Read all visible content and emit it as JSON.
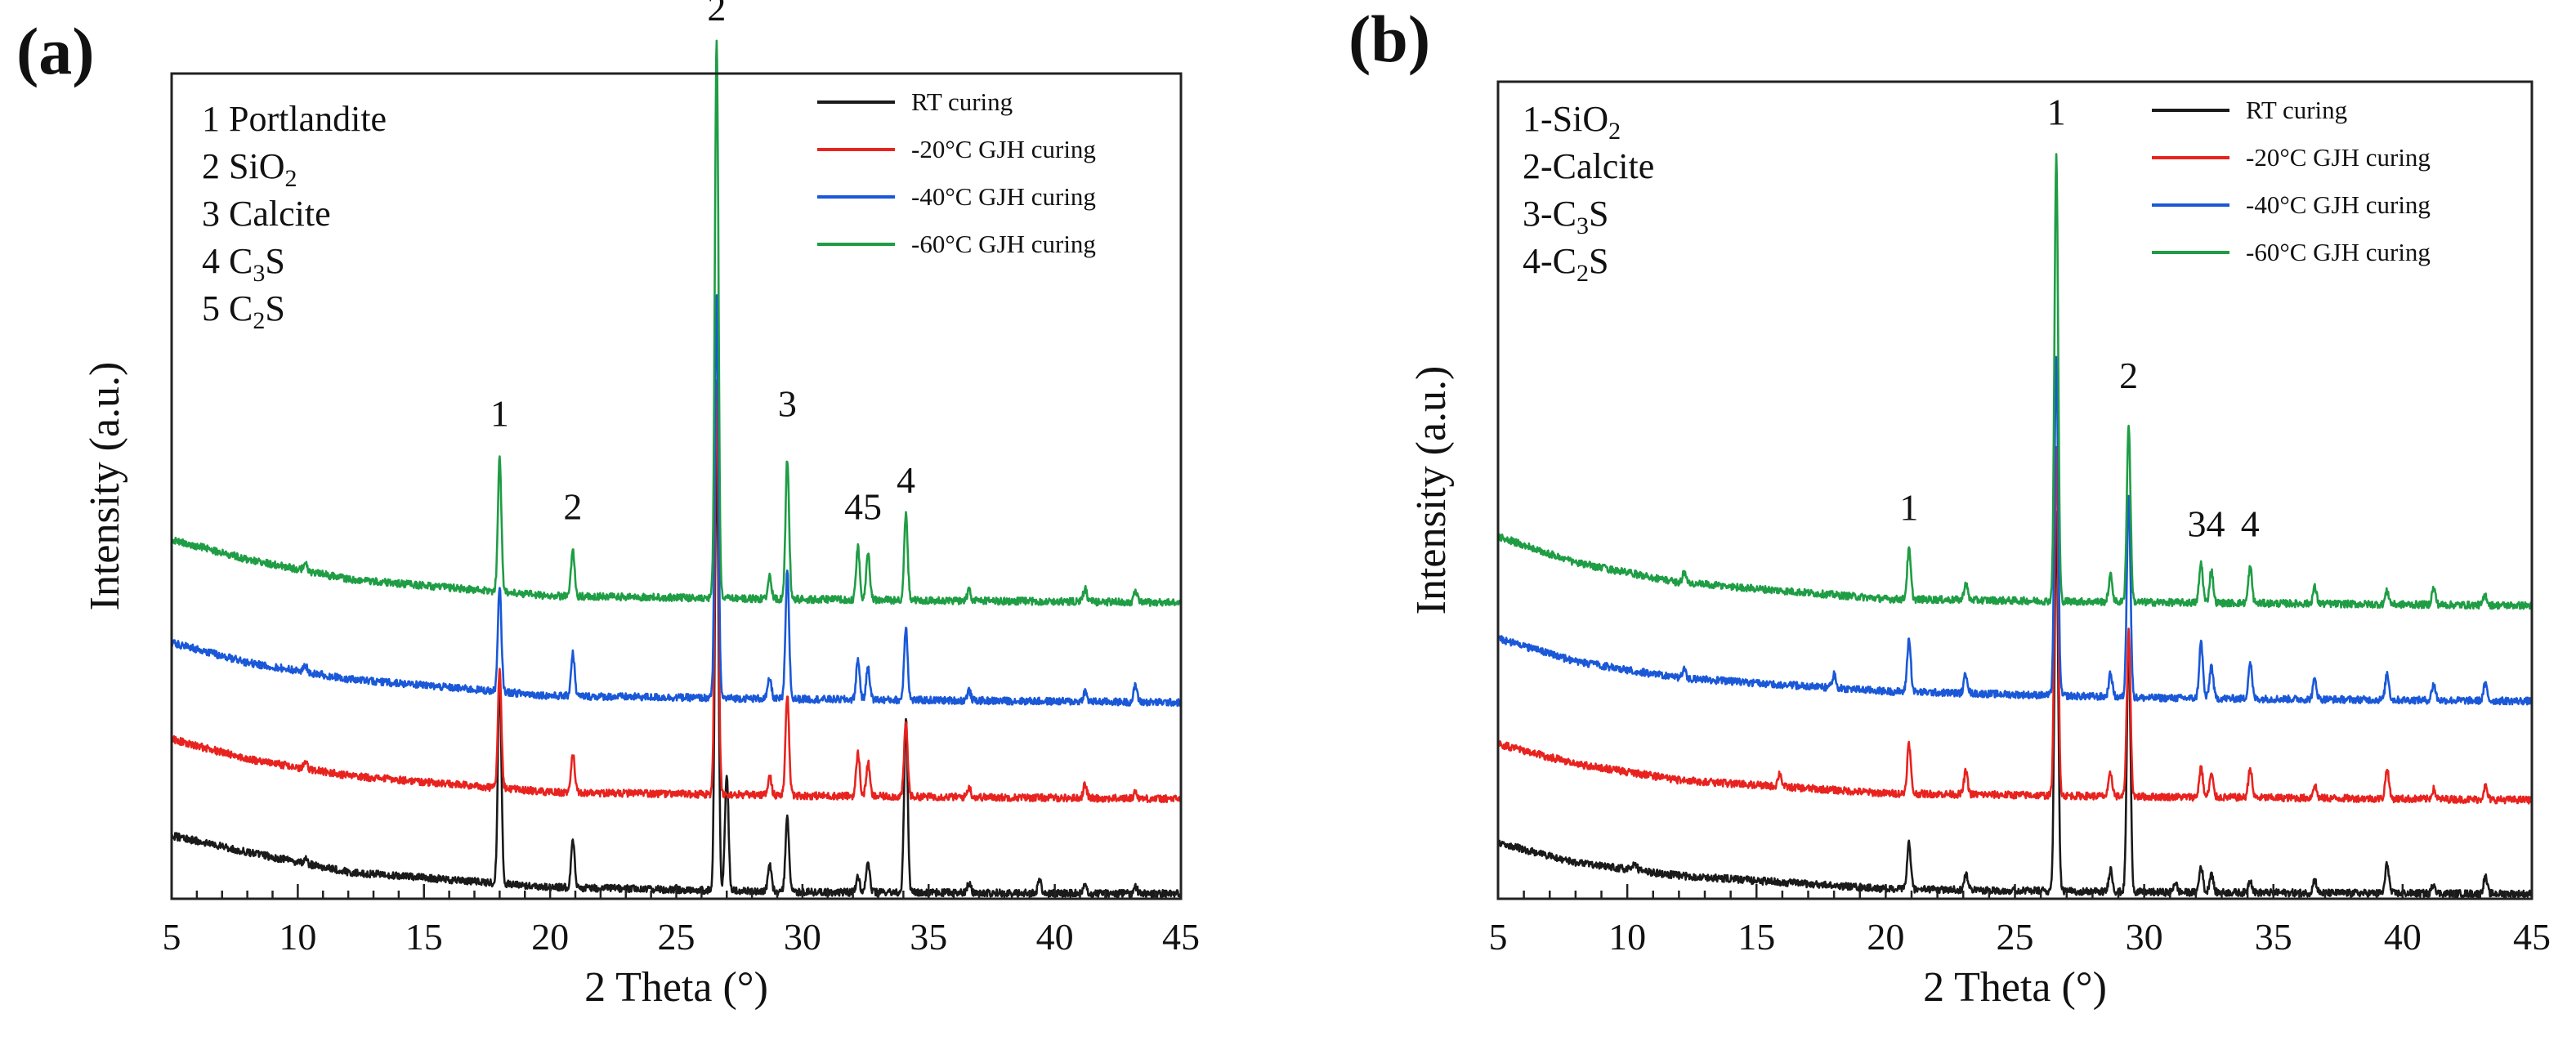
{
  "chart_data": [
    {
      "panel_label": "(a)",
      "type": "line",
      "xlabel": "2 Theta (°)",
      "ylabel": "Intensity (a.u.)",
      "xlim": [
        5,
        45
      ],
      "x_ticks": [
        5,
        10,
        15,
        20,
        25,
        30,
        35,
        40,
        45
      ],
      "y_ticks_labeled": false,
      "legend_position": "top-right",
      "phase_key": [
        {
          "num": "1",
          "name": "Portlandite"
        },
        {
          "num": "2",
          "name": "SiO",
          "sub": "2"
        },
        {
          "num": "3",
          "name": "Calcite"
        },
        {
          "num": "4",
          "name": "C",
          "sub": "3",
          "tail": "S"
        },
        {
          "num": "5",
          "name": "C",
          "sub": "2",
          "tail": "S"
        }
      ],
      "series": [
        {
          "name": "RT curing",
          "color": "#1a1a1a",
          "baseline": [
            [
              5,
              0.19
            ],
            [
              8,
              0.14
            ],
            [
              12,
              0.08
            ],
            [
              20,
              0.035
            ],
            [
              30,
              0.02
            ],
            [
              45,
              0.015
            ]
          ],
          "peaks": [
            [
              10.3,
              0.015
            ],
            [
              18.0,
              0.62
            ],
            [
              20.9,
              0.14
            ],
            [
              26.6,
              1.35
            ],
            [
              27.0,
              0.35
            ],
            [
              28.7,
              0.08
            ],
            [
              29.4,
              0.22
            ],
            [
              32.2,
              0.05
            ],
            [
              32.6,
              0.09
            ],
            [
              34.1,
              0.53
            ],
            [
              36.6,
              0.03
            ],
            [
              39.4,
              0.04
            ],
            [
              41.2,
              0.02
            ],
            [
              43.2,
              0.02
            ]
          ]
        },
        {
          "name": "-20°C GJH curing",
          "color": "#e8231f",
          "baseline": [
            [
              5,
              0.2
            ],
            [
              8,
              0.14
            ],
            [
              12,
              0.09
            ],
            [
              20,
              0.04
            ],
            [
              30,
              0.03
            ],
            [
              45,
              0.02
            ]
          ],
          "peaks": [
            [
              10.3,
              0.02
            ],
            [
              18.0,
              0.35
            ],
            [
              20.9,
              0.12
            ],
            [
              26.6,
              1.25
            ],
            [
              28.7,
              0.06
            ],
            [
              29.4,
              0.3
            ],
            [
              32.2,
              0.13
            ],
            [
              32.6,
              0.1
            ],
            [
              34.1,
              0.22
            ],
            [
              36.6,
              0.03
            ],
            [
              41.2,
              0.04
            ],
            [
              43.2,
              0.02
            ]
          ]
        },
        {
          "name": "-40°C GJH curing",
          "color": "#1a58d8",
          "baseline": [
            [
              5,
              0.21
            ],
            [
              8,
              0.15
            ],
            [
              12,
              0.1
            ],
            [
              20,
              0.05
            ],
            [
              30,
              0.04
            ],
            [
              45,
              0.03
            ]
          ],
          "peaks": [
            [
              10.3,
              0.02
            ],
            [
              18.0,
              0.31
            ],
            [
              20.9,
              0.13
            ],
            [
              26.6,
              1.2
            ],
            [
              28.7,
              0.06
            ],
            [
              29.4,
              0.38
            ],
            [
              32.2,
              0.12
            ],
            [
              32.6,
              0.1
            ],
            [
              34.1,
              0.22
            ],
            [
              36.6,
              0.03
            ],
            [
              41.2,
              0.03
            ],
            [
              43.2,
              0.05
            ]
          ]
        },
        {
          "name": "-60°C GJH curing",
          "color": "#1f9d45",
          "baseline": [
            [
              5,
              0.22
            ],
            [
              8,
              0.16
            ],
            [
              12,
              0.1
            ],
            [
              20,
              0.05
            ],
            [
              30,
              0.04
            ],
            [
              45,
              0.03
            ]
          ],
          "peaks": [
            [
              10.3,
              0.03
            ],
            [
              18.0,
              0.4
            ],
            [
              20.9,
              0.14
            ],
            [
              26.6,
              1.68
            ],
            [
              28.7,
              0.07
            ],
            [
              29.4,
              0.42
            ],
            [
              32.2,
              0.16
            ],
            [
              32.6,
              0.14
            ],
            [
              34.1,
              0.26
            ],
            [
              36.6,
              0.03
            ],
            [
              41.2,
              0.04
            ],
            [
              43.2,
              0.03
            ]
          ]
        }
      ],
      "series_offsets": [
        0.0,
        0.28,
        0.56,
        0.86
      ],
      "y_range": [
        0,
        2.48
      ],
      "peak_labels": [
        {
          "text": "1",
          "x": 18.0,
          "y": 1.42
        },
        {
          "text": "2",
          "x": 20.9,
          "y": 1.14
        },
        {
          "text": "2",
          "x": 26.6,
          "y": 2.64
        },
        {
          "text": "3",
          "x": 29.4,
          "y": 1.45
        },
        {
          "text": "45",
          "x": 32.4,
          "y": 1.14
        },
        {
          "text": "4",
          "x": 34.1,
          "y": 1.22
        }
      ]
    },
    {
      "panel_label": "(b)",
      "type": "line",
      "xlabel": "2 Theta (°)",
      "ylabel": "Intensity (a.u.)",
      "xlim": [
        5,
        45
      ],
      "x_ticks": [
        5,
        10,
        15,
        20,
        25,
        30,
        35,
        40,
        45
      ],
      "y_ticks_labeled": false,
      "legend_position": "top-right",
      "phase_key": [
        {
          "num": "1",
          "name": "SiO",
          "sub": "2"
        },
        {
          "num": "2",
          "name": "Calcite"
        },
        {
          "num": "3",
          "name": "C",
          "sub": "3",
          "tail": "S"
        },
        {
          "num": "4",
          "name": "C",
          "sub": "2",
          "tail": "S"
        }
      ],
      "series": [
        {
          "name": "RT curing",
          "color": "#1a1a1a",
          "baseline": [
            [
              5,
              0.17
            ],
            [
              8,
              0.11
            ],
            [
              12,
              0.07
            ],
            [
              20,
              0.03
            ],
            [
              30,
              0.02
            ],
            [
              45,
              0.015
            ]
          ],
          "peaks": [
            [
              10.3,
              0.02
            ],
            [
              20.9,
              0.14
            ],
            [
              23.1,
              0.05
            ],
            [
              26.6,
              1.15
            ],
            [
              28.7,
              0.07
            ],
            [
              29.4,
              0.77
            ],
            [
              31.2,
              0.03
            ],
            [
              32.2,
              0.08
            ],
            [
              32.6,
              0.06
            ],
            [
              34.1,
              0.04
            ],
            [
              36.6,
              0.04
            ],
            [
              39.4,
              0.09
            ],
            [
              41.2,
              0.03
            ],
            [
              43.2,
              0.05
            ]
          ]
        },
        {
          "name": "-20°C GJH curing",
          "color": "#e8231f",
          "baseline": [
            [
              5,
              0.19
            ],
            [
              8,
              0.13
            ],
            [
              12,
              0.08
            ],
            [
              20,
              0.04
            ],
            [
              30,
              0.03
            ],
            [
              45,
              0.02
            ]
          ],
          "peaks": [
            [
              15.9,
              0.04
            ],
            [
              20.9,
              0.15
            ],
            [
              23.1,
              0.07
            ],
            [
              26.6,
              1.05
            ],
            [
              28.7,
              0.07
            ],
            [
              29.4,
              0.5
            ],
            [
              32.2,
              0.09
            ],
            [
              32.6,
              0.07
            ],
            [
              34.1,
              0.09
            ],
            [
              36.6,
              0.04
            ],
            [
              39.4,
              0.09
            ],
            [
              41.2,
              0.03
            ],
            [
              43.2,
              0.04
            ]
          ]
        },
        {
          "name": "-40°C GJH curing",
          "color": "#1a58d8",
          "baseline": [
            [
              5,
              0.21
            ],
            [
              8,
              0.14
            ],
            [
              12,
              0.09
            ],
            [
              20,
              0.05
            ],
            [
              30,
              0.03
            ],
            [
              45,
              0.02
            ]
          ],
          "peaks": [
            [
              12.2,
              0.03
            ],
            [
              18.0,
              0.04
            ],
            [
              20.9,
              0.16
            ],
            [
              23.1,
              0.06
            ],
            [
              26.6,
              1.02
            ],
            [
              28.7,
              0.07
            ],
            [
              29.4,
              0.62
            ],
            [
              32.2,
              0.17
            ],
            [
              32.6,
              0.1
            ],
            [
              34.1,
              0.11
            ],
            [
              36.6,
              0.06
            ],
            [
              39.4,
              0.08
            ],
            [
              41.2,
              0.05
            ],
            [
              43.2,
              0.05
            ]
          ]
        },
        {
          "name": "-60°C GJH curing",
          "color": "#1f9d45",
          "baseline": [
            [
              5,
              0.24
            ],
            [
              8,
              0.16
            ],
            [
              12,
              0.1
            ],
            [
              20,
              0.05
            ],
            [
              30,
              0.04
            ],
            [
              45,
              0.03
            ]
          ],
          "peaks": [
            [
              12.2,
              0.03
            ],
            [
              20.9,
              0.15
            ],
            [
              23.1,
              0.05
            ],
            [
              26.6,
              1.35
            ],
            [
              28.7,
              0.08
            ],
            [
              29.4,
              0.54
            ],
            [
              32.2,
              0.12
            ],
            [
              32.6,
              0.1
            ],
            [
              34.1,
              0.11
            ],
            [
              36.6,
              0.05
            ],
            [
              39.4,
              0.04
            ],
            [
              41.2,
              0.05
            ],
            [
              43.2,
              0.03
            ]
          ]
        }
      ],
      "series_offsets": [
        0.0,
        0.28,
        0.58,
        0.86
      ],
      "y_range": [
        0,
        2.48
      ],
      "peak_labels": [
        {
          "text": "1",
          "x": 20.9,
          "y": 1.15
        },
        {
          "text": "1",
          "x": 26.6,
          "y": 2.35
        },
        {
          "text": "2",
          "x": 29.4,
          "y": 1.55
        },
        {
          "text": "34",
          "x": 32.4,
          "y": 1.1
        },
        {
          "text": "4",
          "x": 34.1,
          "y": 1.1
        }
      ]
    }
  ]
}
